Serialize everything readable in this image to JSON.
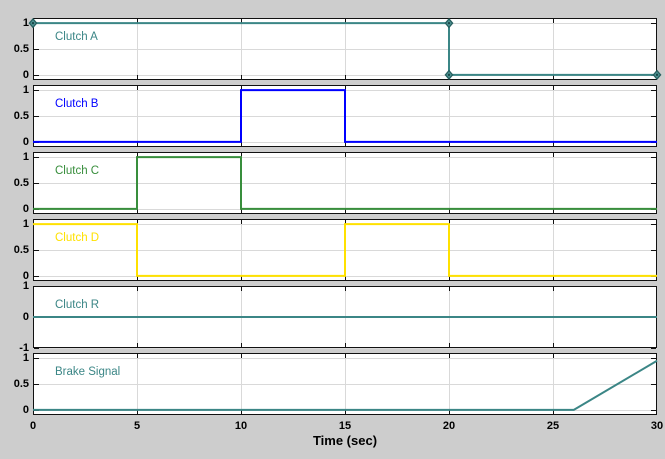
{
  "figure": {
    "background": "#cdcdcd",
    "plot_background": "#ffffff",
    "axis_color": "#111111",
    "grid_color": "#d9d9d9",
    "tick_text_color": "#000000",
    "xlabel": "Time (sec)",
    "xlim": [
      0,
      30
    ],
    "xticks": [
      0,
      5,
      10,
      15,
      20,
      25,
      30
    ],
    "grid": true,
    "legend_position": "none"
  },
  "chart_data": [
    {
      "type": "line",
      "title": "Clutch A",
      "color": "#3b8686",
      "ylim": [
        -0.1,
        1.1
      ],
      "yticks": [
        1,
        0.5,
        0
      ],
      "x": [
        0,
        20,
        20,
        30
      ],
      "y": [
        1,
        1,
        0,
        0
      ],
      "markers": [
        [
          0,
          1
        ],
        [
          20,
          1
        ],
        [
          20,
          0
        ],
        [
          30,
          0
        ]
      ],
      "marker_shape": "diamond"
    },
    {
      "type": "line",
      "title": "Clutch B",
      "color": "#0000ff",
      "ylim": [
        -0.1,
        1.1
      ],
      "yticks": [
        1,
        0.5,
        0
      ],
      "x": [
        0,
        10,
        10,
        15,
        15,
        30
      ],
      "y": [
        0,
        0,
        1,
        1,
        0,
        0
      ]
    },
    {
      "type": "line",
      "title": "Clutch C",
      "color": "#388e3c",
      "ylim": [
        -0.1,
        1.1
      ],
      "yticks": [
        1,
        0.5,
        0
      ],
      "x": [
        0,
        5,
        5,
        10,
        10,
        30
      ],
      "y": [
        0,
        0,
        1,
        1,
        0,
        0
      ]
    },
    {
      "type": "line",
      "title": "Clutch D",
      "color": "#ffe100",
      "ylim": [
        -0.1,
        1.1
      ],
      "yticks": [
        1,
        0.5,
        0
      ],
      "x": [
        0,
        5,
        5,
        15,
        15,
        20,
        20,
        30
      ],
      "y": [
        1,
        1,
        0,
        0,
        1,
        1,
        0,
        0
      ]
    },
    {
      "type": "line",
      "title": "Clutch R",
      "color": "#3b8686",
      "ylim": [
        -1,
        1
      ],
      "yticks": [
        1,
        0,
        -1
      ],
      "x": [
        0,
        30
      ],
      "y": [
        0,
        0
      ]
    },
    {
      "type": "line",
      "title": "Brake Signal",
      "color": "#3b8686",
      "ylim": [
        -0.1,
        1.1
      ],
      "yticks": [
        1,
        0.5,
        0
      ],
      "x": [
        0,
        26,
        30
      ],
      "y": [
        0,
        0,
        0.95
      ]
    }
  ]
}
